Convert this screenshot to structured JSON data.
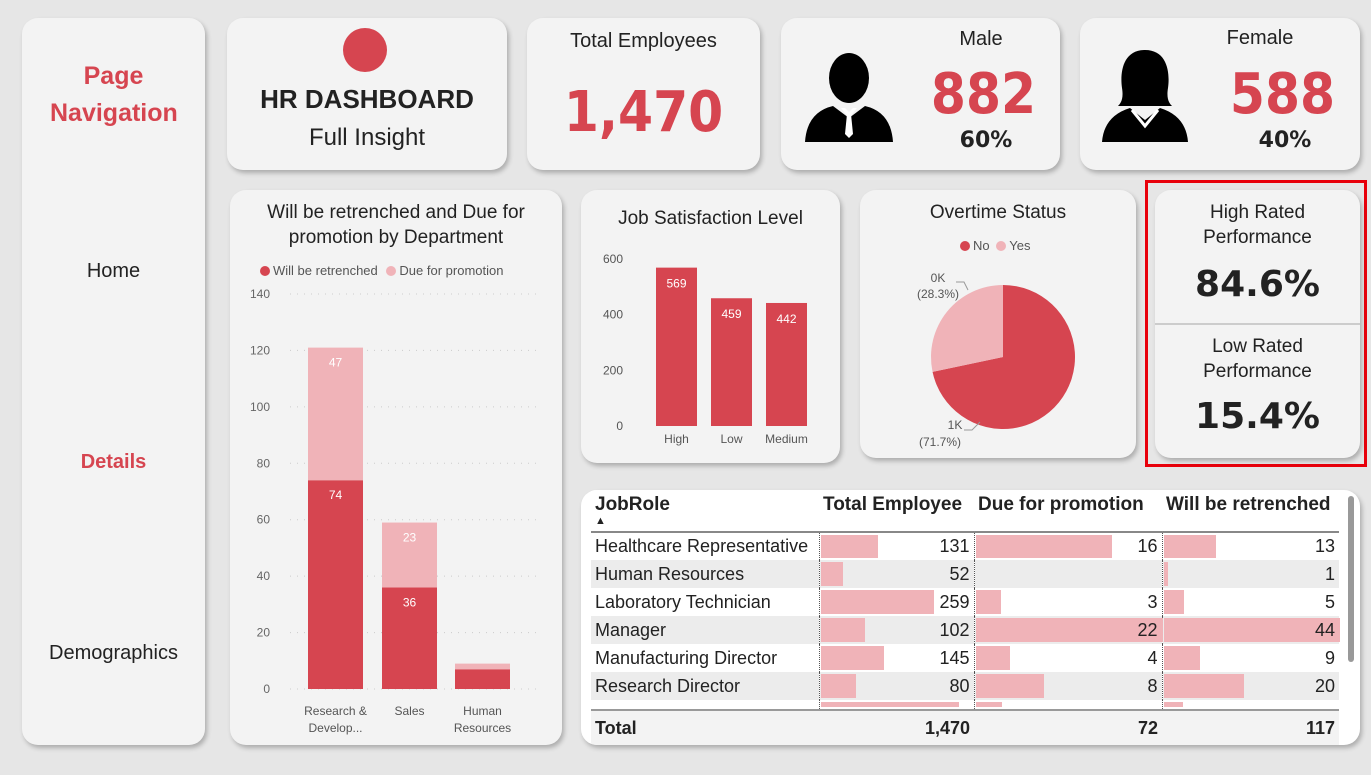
{
  "nav": {
    "title": "Page Navigation",
    "items": [
      {
        "label": "Home",
        "active": false
      },
      {
        "label": "Details",
        "active": true
      },
      {
        "label": "Demographics",
        "active": false
      }
    ]
  },
  "header": {
    "title": "HR DASHBOARD",
    "subtitle": "Full Insight"
  },
  "total": {
    "label": "Total Employees",
    "value": "1,470"
  },
  "male": {
    "label": "Male",
    "value": "882",
    "pct": "60%"
  },
  "female": {
    "label": "Female",
    "value": "588",
    "pct": "40%"
  },
  "colors": {
    "primary": "#d64550",
    "light": "#f0b3b8",
    "highlight": "#e8000b"
  },
  "performance": {
    "high_label": "High Rated Performance",
    "high_value": "84.6%",
    "low_label": "Low Rated Performance",
    "low_value": "15.4%"
  },
  "chart_data": [
    {
      "type": "bar",
      "stacked": true,
      "title": "Will be retrenched and Due for promotion by Department",
      "categories": [
        "Research & Develop...",
        "Sales",
        "Human Resources"
      ],
      "series": [
        {
          "name": "Will be retrenched",
          "values": [
            74,
            36,
            7
          ],
          "color": "#d64550"
        },
        {
          "name": "Due for promotion",
          "values": [
            47,
            23,
            2
          ],
          "color": "#f0b3b8"
        }
      ],
      "ylim": [
        0,
        140
      ],
      "yticks": [
        "0",
        "20",
        "40",
        "60",
        "80",
        "100",
        "120",
        "140"
      ],
      "legend": "top",
      "grid": true
    },
    {
      "type": "bar",
      "title": "Job Satisfaction Level",
      "categories": [
        "High",
        "Low",
        "Medium"
      ],
      "values": [
        569,
        459,
        442
      ],
      "ylim": [
        0,
        600
      ],
      "yticks": [
        "0",
        "200",
        "400",
        "600"
      ]
    },
    {
      "type": "pie",
      "title": "Overtime Status",
      "legend": "top",
      "slices": [
        {
          "name": "No",
          "value": 71.7,
          "label": "1K",
          "pct": "(71.7%)",
          "color": "#d64550"
        },
        {
          "name": "Yes",
          "value": 28.3,
          "label": "0K",
          "pct": "(28.3%)",
          "color": "#f0b3b8"
        }
      ]
    }
  ],
  "table": {
    "headers": [
      "JobRole",
      "Total Employee",
      "Due for promotion",
      "Will be retrenched"
    ],
    "rows": [
      [
        "Healthcare Representative",
        "131",
        "16",
        "13"
      ],
      [
        "Human Resources",
        "52",
        "",
        "1"
      ],
      [
        "Laboratory Technician",
        "259",
        "3",
        "5"
      ],
      [
        "Manager",
        "102",
        "22",
        "44"
      ],
      [
        "Manufacturing Director",
        "145",
        "4",
        "9"
      ],
      [
        "Research Director",
        "80",
        "8",
        "20"
      ]
    ],
    "total": [
      "Total",
      "1,470",
      "72",
      "117"
    ]
  }
}
